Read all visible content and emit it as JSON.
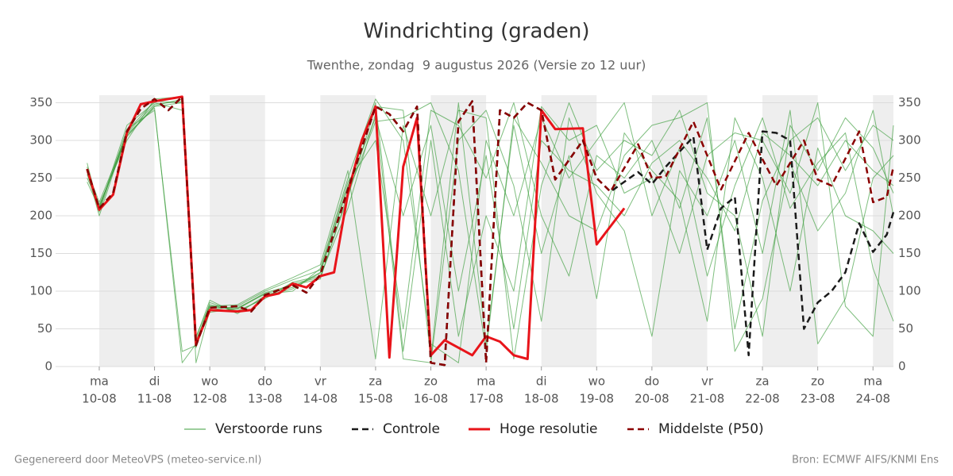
{
  "chart_data": {
    "type": "line",
    "title": "Windrichting (graden)",
    "subtitle": "Twenthe, zondag  9 augustus 2026 (Versie zo 12 uur)",
    "footer_left": "Gegenereerd door MeteoVPS (meteo-service.nl)",
    "footer_right": "Bron: ECMWF AIFS/KNMI Ens",
    "xlim": [
      -0.79,
      14.37
    ],
    "ylim": [
      0,
      360
    ],
    "yticks": [
      0,
      50,
      100,
      150,
      200,
      250,
      300,
      350
    ],
    "xticks": [
      {
        "value": 0,
        "day": "ma",
        "label": "10-08"
      },
      {
        "value": 1,
        "day": "di",
        "label": "11-08"
      },
      {
        "value": 2,
        "day": "wo",
        "label": "12-08"
      },
      {
        "value": 3,
        "day": "do",
        "label": "13-08"
      },
      {
        "value": 4,
        "day": "vr",
        "label": "14-08"
      },
      {
        "value": 5,
        "day": "za",
        "label": "15-08"
      },
      {
        "value": 6,
        "day": "zo",
        "label": "16-08"
      },
      {
        "value": 7,
        "day": "ma",
        "label": "17-08"
      },
      {
        "value": 8,
        "day": "di",
        "label": "18-08"
      },
      {
        "value": 9,
        "day": "wo",
        "label": "19-08"
      },
      {
        "value": 10,
        "day": "do",
        "label": "20-08"
      },
      {
        "value": 11,
        "day": "vr",
        "label": "21-08"
      },
      {
        "value": 12,
        "day": "za",
        "label": "22-08"
      },
      {
        "value": 13,
        "day": "zo",
        "label": "23-08"
      },
      {
        "value": 14,
        "day": "ma",
        "label": "24-08"
      }
    ],
    "grid": true,
    "legend": "bottom",
    "series": [
      {
        "name": "Verstoorde runs",
        "color": "#3a9d3a",
        "dash": false,
        "width": 1,
        "x": [
          -0.22,
          0,
          0.5,
          1,
          1.5,
          1.75,
          2,
          2.5,
          3,
          3.5,
          4,
          4.5,
          5,
          5.5,
          6,
          6.5,
          7,
          7.5,
          8,
          8.5,
          9,
          9.5,
          10,
          10.5,
          11,
          11.5,
          12,
          12.5,
          13,
          13.5,
          14,
          14.37
        ],
        "members": [
          [
            255,
            212,
            305,
            345,
            350,
            35,
            80,
            76,
            97,
            105,
            125,
            240,
            330,
            200,
            320,
            100,
            280,
            50,
            300,
            260,
            240,
            200,
            270,
            300,
            250,
            180,
            310,
            280,
            240,
            300,
            260,
            240
          ],
          [
            265,
            205,
            315,
            340,
            20,
            28,
            85,
            72,
            92,
            110,
            118,
            225,
            345,
            340,
            10,
            350,
            30,
            320,
            150,
            280,
            90,
            310,
            260,
            220,
            60,
            330,
            250,
            100,
            290,
            200,
            180,
            150
          ],
          [
            250,
            215,
            300,
            355,
            358,
            5,
            75,
            80,
            100,
            115,
            128,
            245,
            300,
            50,
            340,
            320,
            250,
            350,
            200,
            120,
            280,
            250,
            300,
            210,
            330,
            50,
            220,
            300,
            330,
            260,
            320,
            300
          ],
          [
            270,
            208,
            320,
            350,
            340,
            40,
            82,
            74,
            90,
            112,
            120,
            210,
            335,
            10,
            5,
            300,
            340,
            240,
            60,
            330,
            230,
            180,
            40,
            260,
            200,
            300,
            150,
            340,
            30,
            90,
            250,
            280
          ],
          [
            245,
            210,
            310,
            348,
            352,
            25,
            78,
            78,
            96,
            100,
            130,
            250,
            355,
            300,
            30,
            5,
            300,
            200,
            330,
            250,
            300,
            350,
            200,
            290,
            120,
            240,
            330,
            210,
            270,
            310,
            130,
            60
          ],
          [
            260,
            218,
            308,
            343,
            5,
            30,
            72,
            77,
            98,
            108,
            116,
            230,
            325,
            330,
            350,
            260,
            20,
            330,
            270,
            200,
            180,
            280,
            320,
            330,
            350,
            20,
            90,
            270,
            180,
            230,
            340,
            200
          ],
          [
            258,
            200,
            312,
            352,
            350,
            38,
            88,
            70,
            94,
            103,
            124,
            238,
            350,
            20,
            300,
            40,
            200,
            100,
            345,
            300,
            320,
            230,
            250,
            150,
            280,
            310,
            300,
            230,
            350,
            80,
            40,
            320
          ],
          [
            262,
            212,
            306,
            346,
            355,
            32,
            80,
            82,
            102,
            118,
            135,
            260,
            10,
            320,
            200,
            340,
            330,
            10,
            240,
            350,
            260,
            300,
            280,
            340,
            230,
            200,
            40,
            320,
            260,
            330,
            290,
            230
          ]
        ]
      },
      {
        "name": "Controle",
        "color": "#1a1a1a",
        "dash": true,
        "width": 2.5,
        "x": [
          -0.22,
          0,
          0.25,
          0.5,
          0.75,
          1,
          1.25,
          1.5,
          1.75,
          2,
          2.5,
          2.75,
          3,
          3.5,
          3.75,
          4,
          4.5,
          5,
          5.25,
          5.5,
          5.75,
          6,
          6.25,
          6.5,
          6.75,
          7,
          7.25,
          7.5,
          7.75,
          8,
          8.25,
          8.75,
          9,
          9.25,
          9.75,
          10,
          10.25,
          10.75,
          11,
          11.25,
          11.5,
          11.75,
          12,
          12.25,
          12.5,
          12.75,
          13,
          13.25,
          13.5,
          13.75,
          14,
          14.25,
          14.37
        ],
        "values": [
          262,
          210,
          230,
          312,
          342,
          355,
          340,
          358,
          28,
          78,
          80,
          73,
          95,
          108,
          98,
          122,
          235,
          345,
          335,
          312,
          345,
          5,
          2,
          325,
          352,
          5,
          340,
          330,
          350,
          340,
          248,
          300,
          250,
          232,
          258,
          242,
          265,
          305,
          155,
          210,
          225,
          15,
          312,
          310,
          300,
          50,
          85,
          100,
          125,
          190,
          152,
          175,
          205
        ]
      },
      {
        "name": "Hoge resolutie",
        "color": "#e8141a",
        "dash": false,
        "width": 3,
        "x": [
          -0.22,
          0,
          0.25,
          0.5,
          0.75,
          1,
          1.25,
          1.5,
          1.75,
          2,
          2.5,
          2.75,
          3,
          3.25,
          3.5,
          3.75,
          4,
          4.25,
          4.5,
          4.75,
          5,
          5.25,
          5.5,
          5.75,
          6,
          6.25,
          6.5,
          6.75,
          7,
          7.25,
          7.5,
          7.75,
          8,
          8.25,
          8.75,
          9,
          9.5
        ],
        "values": [
          262,
          208,
          228,
          310,
          348,
          352,
          355,
          358,
          30,
          75,
          73,
          75,
          93,
          97,
          110,
          105,
          120,
          125,
          230,
          300,
          345,
          12,
          265,
          330,
          15,
          35,
          25,
          15,
          40,
          33,
          15,
          10,
          340,
          315,
          316,
          162,
          210
        ]
      },
      {
        "name": "Middelste (P50)",
        "color": "#8b0000",
        "dash": true,
        "width": 2.5,
        "x": [
          -0.22,
          0,
          0.25,
          0.5,
          0.75,
          1,
          1.25,
          1.5,
          1.75,
          2,
          2.5,
          2.75,
          3,
          3.5,
          3.75,
          4,
          4.5,
          5,
          5.25,
          5.5,
          5.75,
          6,
          6.25,
          6.5,
          6.75,
          7,
          7.25,
          7.5,
          7.75,
          8,
          8.25,
          8.75,
          9,
          9.25,
          9.75,
          10,
          10.25,
          10.75,
          11.25,
          11.75,
          12.25,
          12.75,
          13,
          13.25,
          13.75,
          14,
          14.25,
          14.37
        ],
        "values": [
          262,
          210,
          230,
          312,
          342,
          355,
          340,
          358,
          28,
          78,
          80,
          73,
          95,
          108,
          98,
          122,
          235,
          345,
          335,
          312,
          345,
          5,
          2,
          325,
          352,
          5,
          340,
          330,
          350,
          340,
          248,
          300,
          250,
          232,
          295,
          250,
          252,
          325,
          235,
          310,
          240,
          300,
          248,
          240,
          312,
          218,
          225,
          265
        ]
      }
    ]
  }
}
